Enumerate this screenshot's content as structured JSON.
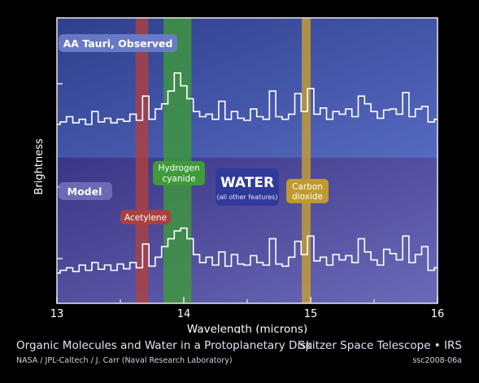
{
  "chart_data": {
    "type": "line",
    "xlabel": "Wavelength (microns)",
    "ylabel": "Brightness",
    "xlim": [
      13,
      16
    ],
    "xticks": [
      "13",
      "14",
      "15",
      "16"
    ],
    "grid": false,
    "series": [
      {
        "name": "AA Tauri, Observed",
        "x": [
          13.0,
          13.05,
          13.1,
          13.15,
          13.2,
          13.25,
          13.3,
          13.35,
          13.4,
          13.45,
          13.5,
          13.55,
          13.6,
          13.65,
          13.7,
          13.75,
          13.8,
          13.85,
          13.9,
          13.95,
          14.0,
          14.05,
          14.1,
          14.15,
          14.2,
          14.25,
          14.3,
          14.35,
          14.4,
          14.45,
          14.5,
          14.55,
          14.6,
          14.65,
          14.7,
          14.75,
          14.8,
          14.85,
          14.9,
          14.95,
          15.0,
          15.05,
          15.1,
          15.15,
          15.2,
          15.25,
          15.3,
          15.35,
          15.4,
          15.45,
          15.5,
          15.55,
          15.6,
          15.65,
          15.7,
          15.75,
          15.8,
          15.85,
          15.9,
          15.95,
          16.0
        ],
        "y": [
          0.3,
          0.35,
          0.45,
          0.33,
          0.4,
          0.3,
          0.55,
          0.35,
          0.42,
          0.33,
          0.4,
          0.36,
          0.5,
          0.38,
          0.85,
          0.4,
          0.6,
          0.7,
          0.95,
          1.3,
          1.05,
          0.8,
          0.55,
          0.45,
          0.5,
          0.4,
          0.75,
          0.4,
          0.55,
          0.42,
          0.38,
          0.6,
          0.45,
          0.4,
          0.95,
          0.45,
          0.4,
          0.5,
          0.9,
          0.55,
          1.0,
          0.5,
          0.62,
          0.4,
          0.55,
          0.5,
          0.6,
          0.45,
          0.85,
          0.7,
          0.55,
          0.42,
          0.58,
          0.6,
          0.5,
          0.92,
          0.45,
          0.6,
          0.65,
          0.35,
          0.4
        ]
      },
      {
        "name": "Model",
        "x": [
          13.0,
          13.05,
          13.1,
          13.15,
          13.2,
          13.25,
          13.3,
          13.35,
          13.4,
          13.45,
          13.5,
          13.55,
          13.6,
          13.65,
          13.7,
          13.75,
          13.8,
          13.85,
          13.9,
          13.95,
          14.0,
          14.05,
          14.1,
          14.15,
          14.2,
          14.25,
          14.3,
          14.35,
          14.4,
          14.45,
          14.5,
          14.55,
          14.6,
          14.65,
          14.7,
          14.75,
          14.8,
          14.85,
          14.9,
          14.95,
          15.0,
          15.05,
          15.1,
          15.15,
          15.2,
          15.25,
          15.3,
          15.35,
          15.4,
          15.45,
          15.5,
          15.55,
          15.6,
          15.65,
          15.7,
          15.75,
          15.8,
          15.85,
          15.9,
          15.95,
          16.0
        ],
        "y": [
          0.25,
          0.3,
          0.35,
          0.28,
          0.4,
          0.3,
          0.45,
          0.32,
          0.4,
          0.3,
          0.42,
          0.33,
          0.45,
          0.35,
          0.8,
          0.38,
          0.55,
          0.75,
          0.9,
          1.05,
          1.1,
          0.9,
          0.6,
          0.45,
          0.55,
          0.4,
          0.65,
          0.38,
          0.6,
          0.42,
          0.4,
          0.58,
          0.45,
          0.4,
          0.9,
          0.42,
          0.38,
          0.55,
          0.85,
          0.6,
          0.95,
          0.48,
          0.55,
          0.4,
          0.6,
          0.5,
          0.58,
          0.45,
          0.9,
          0.65,
          0.5,
          0.4,
          0.7,
          0.62,
          0.5,
          0.95,
          0.45,
          0.6,
          0.75,
          0.3,
          0.35
        ]
      }
    ],
    "panel_labels": [
      "AA Tauri, Observed",
      "Model"
    ],
    "bands": [
      {
        "label": "Acetylene",
        "from": 13.62,
        "to": 13.72,
        "color": "#b0403e"
      },
      {
        "label": "Hydrogen cyanide",
        "from": 13.84,
        "to": 14.06,
        "color": "#3f9a3a"
      },
      {
        "label": "Carbon dioxide",
        "from": 14.93,
        "to": 15.0,
        "color": "#c7a030"
      }
    ],
    "annotations": {
      "acetylene": "Acetylene",
      "hcn": [
        "Hydrogen",
        "cyanide"
      ],
      "water": "WATER",
      "water_sub": "(all other features)",
      "co2": [
        "Carbon",
        "dioxide"
      ]
    },
    "colors": {
      "observed_panel": "#4256a8",
      "model_panel": "#5b4fa0",
      "line": "#ffffff"
    }
  },
  "footer": {
    "title": "Organic Molecules and Water in a Protoplanetary Disk",
    "credit": "NASA / JPL-Caltech / J. Carr (Naval Research Laboratory)",
    "mission": "Spitzer Space Telescope • IRS",
    "id": "ssc2008-06a"
  }
}
